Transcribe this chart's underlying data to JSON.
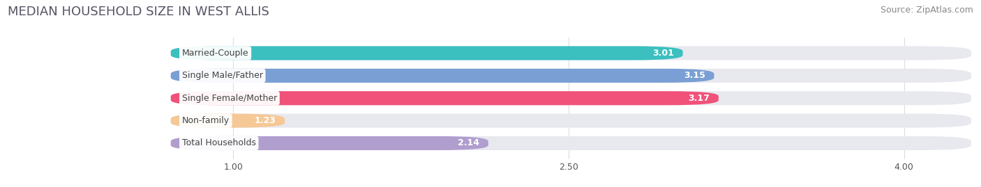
{
  "title": "MEDIAN HOUSEHOLD SIZE IN WEST ALLIS",
  "source": "Source: ZipAtlas.com",
  "categories": [
    "Married-Couple",
    "Single Male/Father",
    "Single Female/Mother",
    "Non-family",
    "Total Households"
  ],
  "values": [
    3.01,
    3.15,
    3.17,
    1.23,
    2.14
  ],
  "bar_colors": [
    "#3bbfbf",
    "#7a9fd4",
    "#f0527a",
    "#f5c896",
    "#b09ecf"
  ],
  "bar_bg_color": "#e8e8ef",
  "fig_bg_color": "#ffffff",
  "xlim_min": 0.0,
  "xlim_max": 4.3,
  "xstart": 0.72,
  "xticks": [
    1.0,
    2.5,
    4.0
  ],
  "title_fontsize": 13,
  "source_fontsize": 9,
  "bar_height": 0.62,
  "bar_gap": 1.0,
  "value_fontsize": 9,
  "label_fontsize": 9
}
